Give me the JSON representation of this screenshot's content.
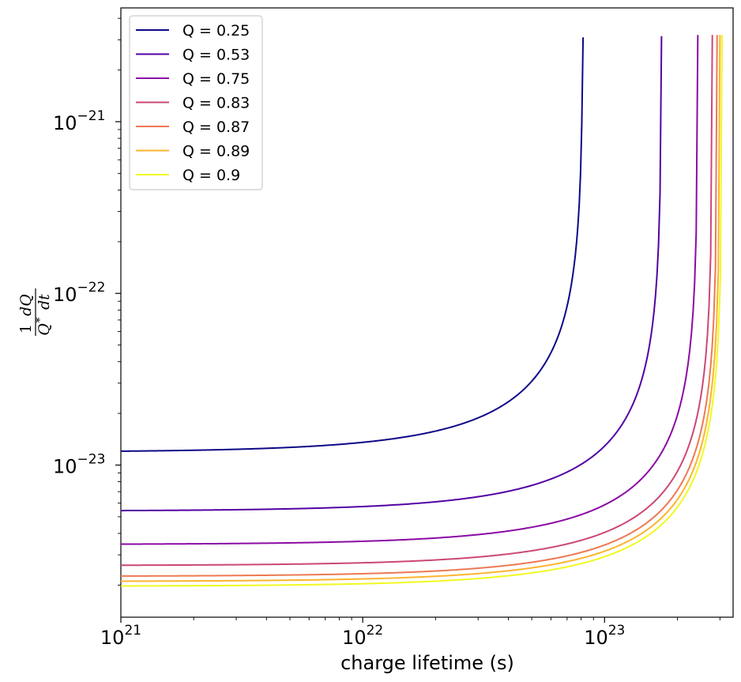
{
  "chart_data": {
    "type": "line",
    "x_scale": "log",
    "y_scale": "log",
    "xlim": [
      1e+21,
      3.4e+23
    ],
    "ylim": [
      1.3e-24,
      4.6e-21
    ],
    "xlabel": "charge lifetime (s)",
    "ylabel": {
      "numerator_left": "1",
      "numerator_right": "dQ",
      "denominator": "Q",
      "denominator_sup": "*",
      "denominator_right": "dt"
    },
    "x_ticks": [
      {
        "value": 1e+21,
        "label_base": "10",
        "label_exp": "21"
      },
      {
        "value": 1e+22,
        "label_base": "10",
        "label_exp": "22"
      },
      {
        "value": 1e+23,
        "label_base": "10",
        "label_exp": "23"
      }
    ],
    "y_ticks": [
      {
        "value": 1e-23,
        "label_base": "10",
        "label_exp": "−23"
      },
      {
        "value": 1e-22,
        "label_base": "10",
        "label_exp": "−22"
      },
      {
        "value": 1e-21,
        "label_base": "10",
        "label_exp": "−21"
      }
    ],
    "legend_position": "top-left",
    "grid": false,
    "series": [
      {
        "name": "Q = 0.25",
        "color": "#0d0887",
        "x_max": 8.15e+22,
        "y_start": 1.19e-23,
        "y_end": 3.1e-21
      },
      {
        "name": "Q = 0.53",
        "color": "#5302a3",
        "x_max": 1.72e+23,
        "y_start": 5.4e-24,
        "y_end": 3.15e-21
      },
      {
        "name": "Q = 0.75",
        "color": "#8b0aa5",
        "x_max": 2.43e+23,
        "y_start": 3.45e-24,
        "y_end": 3.2e-21
      },
      {
        "name": "Q = 0.83",
        "color": "#cc4778",
        "x_max": 2.79e+23,
        "y_start": 2.6e-24,
        "y_end": 3.2e-21
      },
      {
        "name": "Q = 0.87",
        "color": "#ed7953",
        "x_max": 2.92e+23,
        "y_start": 2.25e-24,
        "y_end": 3.2e-21
      },
      {
        "name": "Q = 0.89",
        "color": "#fdb42f",
        "x_max": 3e+23,
        "y_start": 2.1e-24,
        "y_end": 3.2e-21
      },
      {
        "name": "Q = 0.9",
        "color": "#f0f921",
        "x_max": 3.06e+23,
        "y_start": 1.97e-24,
        "y_end": 3.2e-21
      }
    ]
  }
}
